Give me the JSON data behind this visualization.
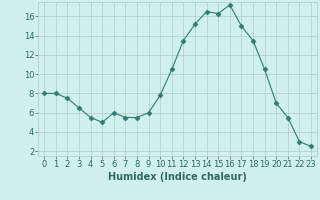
{
  "x": [
    0,
    1,
    2,
    3,
    4,
    5,
    6,
    7,
    8,
    9,
    10,
    11,
    12,
    13,
    14,
    15,
    16,
    17,
    18,
    19,
    20,
    21,
    22,
    23
  ],
  "y": [
    8,
    8,
    7.5,
    6.5,
    5.5,
    5,
    6,
    5.5,
    5.5,
    6,
    7.8,
    10.5,
    13.5,
    15.2,
    16.5,
    16.3,
    17.2,
    15,
    13.5,
    10.5,
    7,
    5.5,
    3,
    2.5
  ],
  "line_color": "#2e7d6e",
  "marker": "D",
  "marker_size": 2.5,
  "bg_color": "#cff0eb",
  "grid_color": "#b8c8c4",
  "xlabel": "Humidex (Indice chaleur)",
  "xlim": [
    -0.5,
    23.5
  ],
  "ylim": [
    1.5,
    17.5
  ],
  "yticks": [
    2,
    4,
    6,
    8,
    10,
    12,
    14,
    16
  ],
  "xticks": [
    0,
    1,
    2,
    3,
    4,
    5,
    6,
    7,
    8,
    9,
    10,
    11,
    12,
    13,
    14,
    15,
    16,
    17,
    18,
    19,
    20,
    21,
    22,
    23
  ],
  "tick_color": "#2e6b5e",
  "label_fontsize": 6,
  "axis_fontsize": 7
}
